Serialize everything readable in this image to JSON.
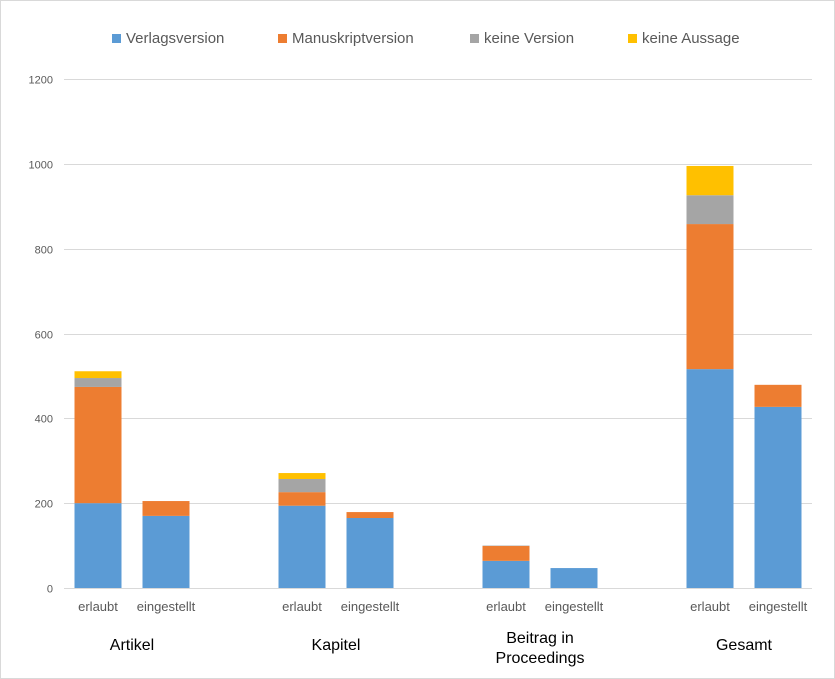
{
  "chart_data": {
    "type": "bar",
    "stacked": true,
    "title": "",
    "xlabel": "",
    "ylabel": "",
    "ylim": [
      0,
      1200
    ],
    "yticks": [
      0,
      200,
      400,
      600,
      800,
      1000,
      1200
    ],
    "ytick_labels": [
      "0",
      "200",
      "400",
      "600",
      "800",
      "1000",
      "1200"
    ],
    "grid": true,
    "legend_position": "top",
    "groups": [
      {
        "label": "Artikel",
        "categories": [
          "erlaubt",
          "eingestellt"
        ]
      },
      {
        "label": "Kapitel",
        "categories": [
          "erlaubt",
          "eingestellt"
        ]
      },
      {
        "label": "Beitrag in Proceedings",
        "label_lines": [
          "Beitrag in",
          "Proceedings"
        ],
        "categories": [
          "erlaubt",
          "eingestellt"
        ]
      },
      {
        "label": "Gesamt",
        "categories": [
          "erlaubt",
          "eingestellt"
        ]
      }
    ],
    "categories": [
      "Artikel erlaubt",
      "Artikel eingestellt",
      "Kapitel erlaubt",
      "Kapitel eingestellt",
      "Beitrag in Proceedings erlaubt",
      "Beitrag in Proceedings eingestellt",
      "Gesamt erlaubt",
      "Gesamt eingestellt"
    ],
    "series": [
      {
        "name": "Verlagsversion",
        "color": "#5B9BD5",
        "values": [
          200,
          170,
          194,
          165,
          64,
          47,
          516,
          427
        ]
      },
      {
        "name": "Manuskriptversion",
        "color": "#ED7D31",
        "values": [
          274,
          35,
          32,
          14,
          35,
          0,
          342,
          52
        ]
      },
      {
        "name": "keine Version",
        "color": "#A5A5A5",
        "values": [
          21,
          0,
          31,
          0,
          1,
          0,
          68,
          0
        ]
      },
      {
        "name": "keine Aussage",
        "color": "#FFC000",
        "values": [
          16,
          0,
          14,
          0,
          0,
          0,
          69,
          0
        ]
      }
    ]
  }
}
